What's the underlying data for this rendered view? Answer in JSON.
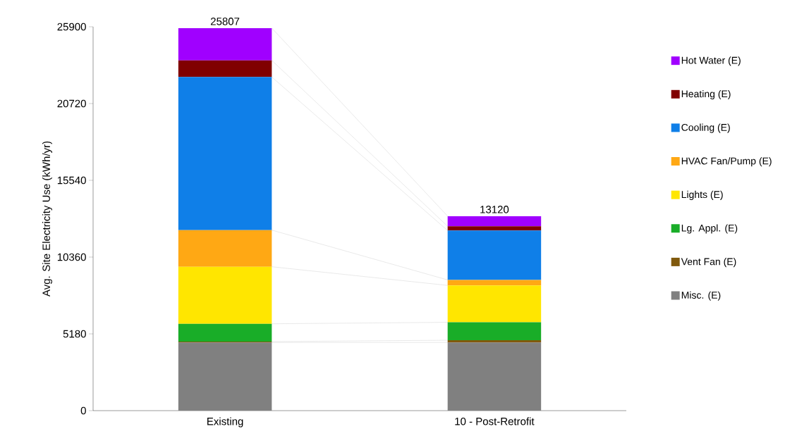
{
  "chart_data": {
    "type": "bar",
    "stacked": true,
    "ylabel": "Avg. Site Electricity Use (kWh/yr)",
    "categories": [
      "Existing",
      "10 - Post-Retrofit"
    ],
    "series": [
      {
        "name": "Misc. (E)",
        "color": "#808080",
        "values": [
          4600,
          4600
        ]
      },
      {
        "name": "Vent Fan (E)",
        "color": "#80590d",
        "values": [
          60,
          150
        ]
      },
      {
        "name": "Lg. Appl. (E)",
        "color": "#19ad28",
        "values": [
          1200,
          1210
        ]
      },
      {
        "name": "Lights (E)",
        "color": "#ffe600",
        "values": [
          3850,
          2490
        ]
      },
      {
        "name": "HVAC Fan/Pump (E)",
        "color": "#ffa814",
        "values": [
          2470,
          370
        ]
      },
      {
        "name": "Cooling (E)",
        "color": "#0f7fe8",
        "values": [
          10330,
          3330
        ]
      },
      {
        "name": "Heating (E)",
        "color": "#800000",
        "values": [
          1120,
          290
        ]
      },
      {
        "name": "Hot Water (E)",
        "color": "#a000ff",
        "values": [
          2180,
          680
        ]
      }
    ],
    "totals": [
      "25807",
      "13120"
    ],
    "ylim": [
      0,
      25900
    ],
    "yticks": [
      0,
      5180,
      10360,
      15540,
      20720,
      25900
    ],
    "grid": false,
    "legend": "right"
  }
}
